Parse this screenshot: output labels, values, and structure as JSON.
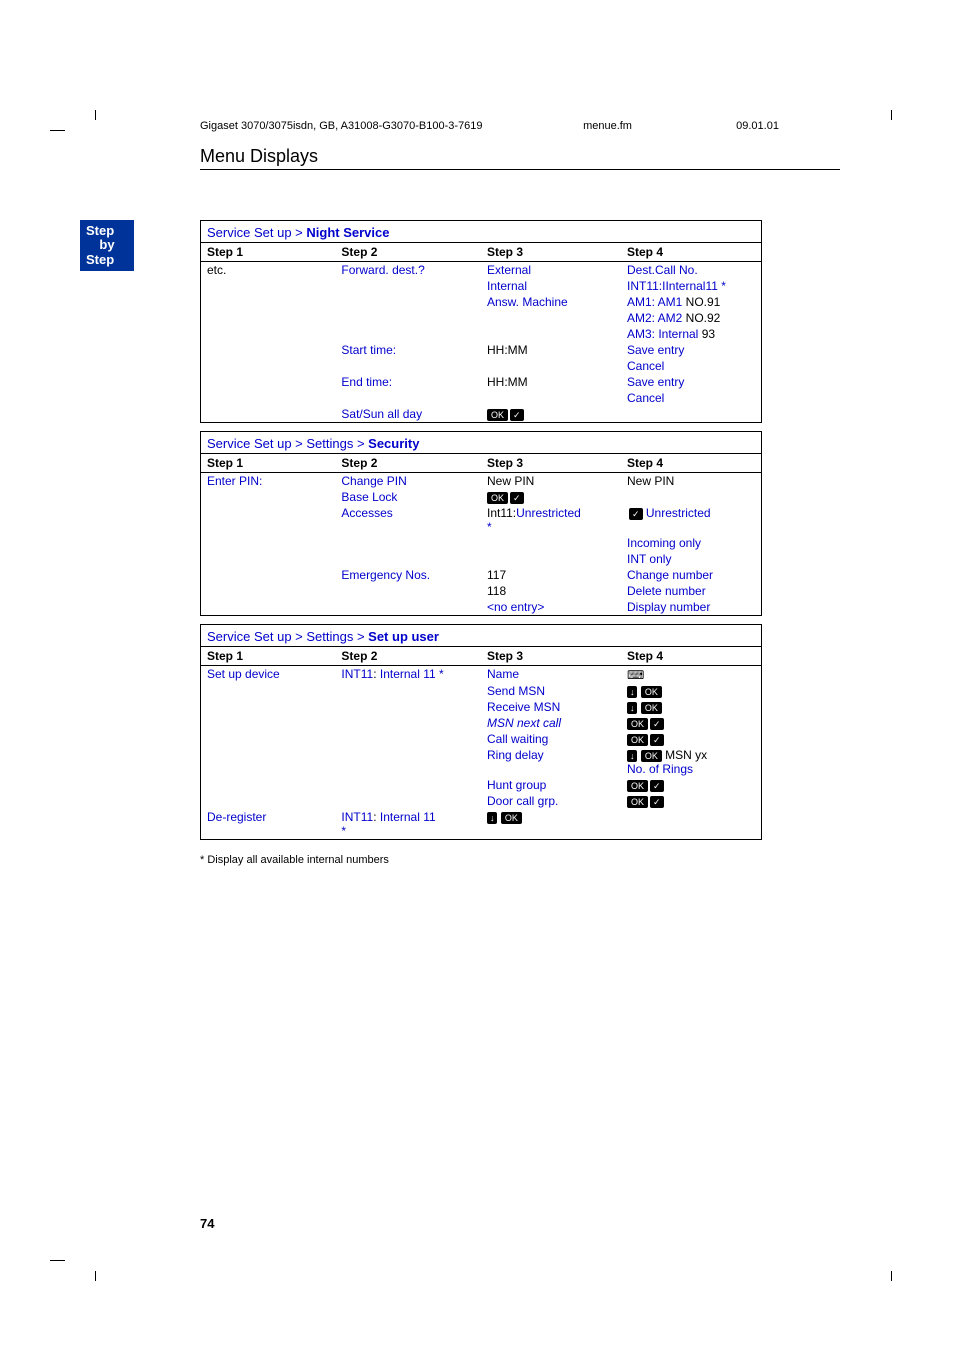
{
  "header": {
    "doc_id": "Gigaset 3070/3075isdn, GB, A31008-G3070-B100-3-7619",
    "file": "menue.fm",
    "date": "09.01.01"
  },
  "section_title": "Menu Displays",
  "step_badge": {
    "line1": "Step",
    "line2": "by",
    "line3": "Step"
  },
  "blocks": [
    {
      "title_prefix": "Service Set up > ",
      "title_bold": "Night Service",
      "headers": [
        "Step 1",
        "Step 2",
        "Step 3",
        "Step 4"
      ],
      "rows": [
        {
          "c1": "etc.",
          "c1_color": "black",
          "c2": "Forward. dest.?",
          "c3": "External",
          "c4": "Dest.Call No."
        },
        {
          "c1": "",
          "c2": "",
          "c3": "Internal",
          "c4": "INT11:IInternal11 *"
        },
        {
          "c1": "",
          "c2": "",
          "c3": "Answ. Machine",
          "c4_html": "<span class='blue'>AM1: AM1</span> NO.91"
        },
        {
          "c1": "",
          "c2": "",
          "c3": "",
          "c4_html": "<span class='blue'>AM2: AM2</span> NO.92"
        },
        {
          "c1": "",
          "c2": "",
          "c3": "",
          "c4_html": "<span class='blue'>AM3: Internal</span> 93"
        },
        {
          "c1": "",
          "c2": "Start time:",
          "c3": "HH:MM",
          "c3_color": "black",
          "c4": "Save entry"
        },
        {
          "c1": "",
          "c2": "",
          "c3": "",
          "c4": "Cancel"
        },
        {
          "c1": "",
          "c2": "End time:",
          "c3": "HH:MM",
          "c3_color": "black",
          "c4": "Save entry"
        },
        {
          "c1": "",
          "c2": "",
          "c3": "",
          "c4": "Cancel"
        },
        {
          "c1": "",
          "c2": "Sat/Sun all day",
          "c3_icon": "ok-check",
          "c4": ""
        }
      ]
    },
    {
      "title_prefix": "Service Set up > Settings > ",
      "title_bold": "Security",
      "headers": [
        "Step 1",
        "Step 2",
        "Step 3",
        "Step 4"
      ],
      "rows": [
        {
          "c1": "Enter PIN:",
          "c2": "Change PIN",
          "c3": "New PIN",
          "c3_color": "black",
          "c4": "New PIN",
          "c4_color": "black"
        },
        {
          "c1": "",
          "c2": "Base Lock",
          "c3_icon": "ok-check",
          "c4": ""
        },
        {
          "c1": "",
          "c2": "Accesses",
          "c3_html": "Int11:<span class='blue'>Unrestricted</span><br><span class='blue'>*</span>",
          "c3_color": "black",
          "c4_html": "<span class='icon-check'>✓</span> <span class='blue'>Unrestricted</span>"
        },
        {
          "c1": "",
          "c2": "",
          "c3": "",
          "c4": "Incoming only"
        },
        {
          "c1": "",
          "c2": "",
          "c3": "",
          "c4": "INT only"
        },
        {
          "c1": "",
          "c2": "Emergency Nos.",
          "c3": "117",
          "c3_color": "black",
          "c4": "Change number"
        },
        {
          "c1": "",
          "c2": "",
          "c3": "118",
          "c3_color": "black",
          "c4": "Delete number"
        },
        {
          "c1": "",
          "c2": "",
          "c3": "<no entry>",
          "c4": "Display number"
        }
      ]
    },
    {
      "title_prefix": "Service Set up > Settings > ",
      "title_bold": "Set up user",
      "headers": [
        "Step 1",
        "Step 2",
        "Step 3",
        "Step 4"
      ],
      "rows": [
        {
          "c1": "Set up device",
          "c2_html": "<span class='blue'>INT11</span>: <span class='blue'>Internal 11 *</span>",
          "c3": "Name",
          "c4_icon": "keyboard"
        },
        {
          "c1": "",
          "c2": "",
          "c3": "Send MSN",
          "c4_icon": "arrow-ok"
        },
        {
          "c1": "",
          "c2": "",
          "c3": "Receive MSN",
          "c4_icon": "arrow-ok"
        },
        {
          "c1": "",
          "c2": "",
          "c3_html": "<span class='blue' style='font-style:italic'>MSN next call</span>",
          "c4_icon": "ok-check"
        },
        {
          "c1": "",
          "c2": "",
          "c3": "Call waiting",
          "c4_icon": "ok-check"
        },
        {
          "c1": "",
          "c2": "",
          "c3": "Ring delay",
          "c4_html": "<span class='icon-arrow'>↓</span> <span class='icon-ok'>OK</span> MSN yx<br><span class='blue'>No. of Rings</span>"
        },
        {
          "c1": "",
          "c2": "",
          "c3": "Hunt group",
          "c4_icon": "ok-check"
        },
        {
          "c1": "",
          "c2": "",
          "c3": "Door call grp.",
          "c4_icon": "ok-check"
        },
        {
          "c1": "De-register",
          "c2_html": "<span class='blue'>INT11</span>: <span class='blue'>Internal 11</span><br><span class='blue'>*</span>",
          "c3_icon": "arrow-ok",
          "c4": ""
        }
      ]
    }
  ],
  "footnote": "*   Display all available internal numbers",
  "page_number": "74"
}
